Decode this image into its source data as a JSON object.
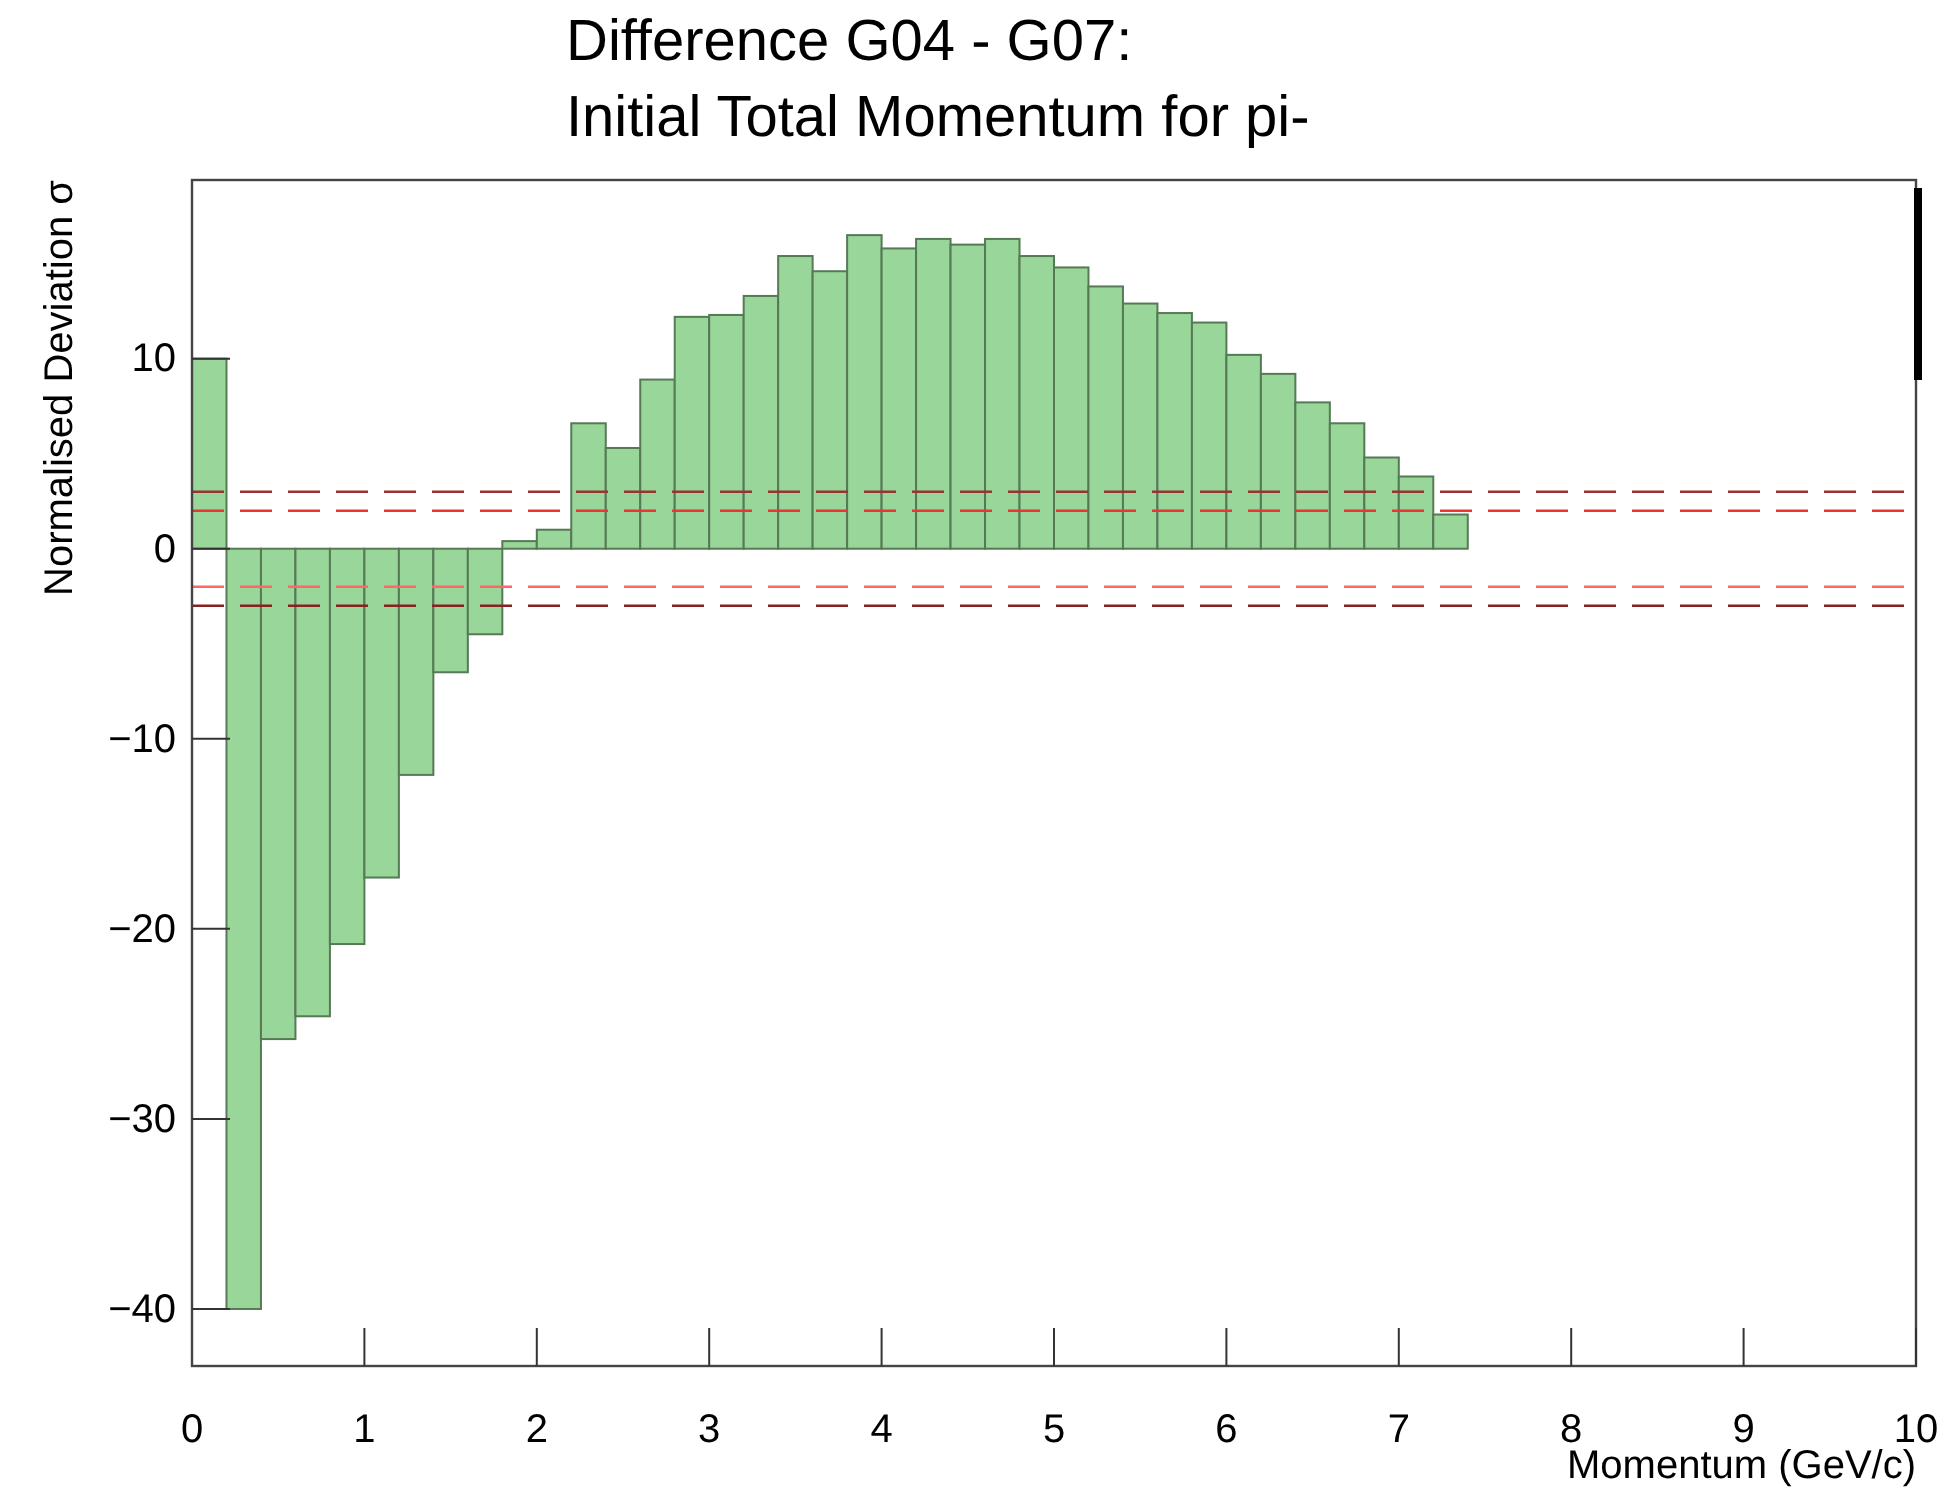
{
  "chart_data": {
    "type": "histogram",
    "title": "Difference G04 - G07:\nInitial Total Momentum for pi-",
    "xlabel": "Momentum (GeV/c)",
    "ylabel": "Normalised Deviation σ",
    "bins": [
      0,
      0.2,
      0.4,
      0.6,
      0.8,
      1,
      1.2,
      1.4,
      1.6,
      1.8,
      2,
      2.2,
      2.4,
      2.6,
      2.8,
      3,
      3.2,
      3.4,
      3.6,
      3.8,
      4,
      4.2,
      4.4,
      4.6,
      4.8,
      5,
      5.2,
      5.4,
      5.6,
      5.8,
      6,
      6.2,
      6.4,
      6.6,
      6.8,
      7,
      7.2,
      7.4,
      7.6,
      7.8,
      8,
      8.2,
      8.4,
      8.6,
      8.8,
      9,
      9.2,
      9.4,
      9.6,
      9.8,
      10
    ],
    "values": [
      10.0,
      -40,
      -25.8,
      -24.6,
      -20.8,
      -17.3,
      -11.9,
      -6.5,
      -4.5,
      0.4,
      1.0,
      6.6,
      5.3,
      8.9,
      12.2,
      12.3,
      13.3,
      15.4,
      14.6,
      16.5,
      15.8,
      16.3,
      16.0,
      16.3,
      15.4,
      14.8,
      13.8,
      12.9,
      12.4,
      11.9,
      10.2,
      9.2,
      7.7,
      6.6,
      4.8,
      3.8,
      1.8,
      0,
      0,
      0,
      0,
      0,
      0,
      0,
      0,
      0,
      0,
      0,
      0,
      0
    ],
    "color": "#99d699",
    "xlim": [
      0,
      10
    ],
    "xticks": [
      0,
      1,
      2,
      3,
      4,
      5,
      6,
      7,
      8,
      9,
      10
    ],
    "ylim": [
      -43,
      19.4
    ],
    "yticks": [
      -40,
      -30,
      -20,
      -10,
      0,
      10
    ],
    "ref_lines": [
      {
        "axis": "y",
        "value": 3,
        "color": "#993333",
        "line_style": "dashed"
      },
      {
        "axis": "y",
        "value": 2,
        "color": "#ee3333",
        "line_style": "dashed"
      },
      {
        "axis": "y",
        "value": -2,
        "color": "#ff6666",
        "line_style": "dashed"
      },
      {
        "axis": "y",
        "value": -3,
        "color": "#882222",
        "line_style": "dashed"
      }
    ]
  }
}
